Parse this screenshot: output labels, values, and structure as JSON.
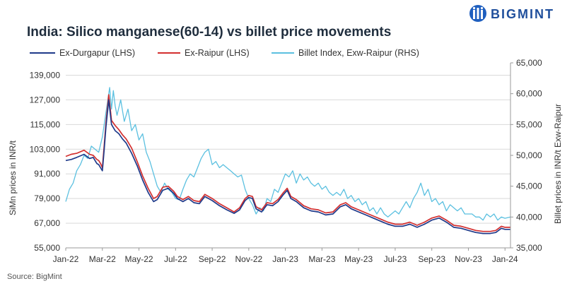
{
  "brand": {
    "name": "BIGMINT",
    "logo_color": "#1f5fbf"
  },
  "chart_data": {
    "type": "line",
    "title": "India: Silico manganese(60-14) vs billet price movements",
    "source": "Source: BigMint",
    "y_left": {
      "label": "SiMn prices in INR/t",
      "min": 55000,
      "max": 145000,
      "ticks": [
        "55,000",
        "67,000",
        "79,000",
        "91,000",
        "103,000",
        "115,000",
        "127,000",
        "139,000"
      ],
      "tick_values": [
        55000,
        67000,
        79000,
        91000,
        103000,
        115000,
        127000,
        139000
      ]
    },
    "y_right": {
      "label": "Billet prices in INR/t Exw-Raipur",
      "min": 35000,
      "max": 65000,
      "ticks": [
        "35,000",
        "40,000",
        "45,000",
        "50,000",
        "55,000",
        "60,000",
        "65,000"
      ],
      "tick_values": [
        35000,
        40000,
        45000,
        50000,
        55000,
        60000,
        65000
      ]
    },
    "x_ticks": [
      "Jan-22",
      "Mar-22",
      "May-22",
      "Jul-22",
      "Sep-22",
      "Nov-22",
      "Jan-23",
      "Mar-23",
      "May-23",
      "Jul-23",
      "Sep-23",
      "Nov-23",
      "Jan-24"
    ],
    "x_tick_months": [
      0,
      2,
      4,
      6,
      8,
      10,
      12,
      14,
      16,
      18,
      20,
      22,
      24
    ],
    "x_range": [
      0,
      24.3
    ],
    "grid": "horizontal",
    "legend_position": "top",
    "series": [
      {
        "name": "Ex-Durgapur (LHS)",
        "axis": "left",
        "color": "#1f3a8a",
        "x": [
          0,
          0.3,
          0.6,
          1.0,
          1.3,
          1.5,
          1.7,
          1.8,
          1.9,
          2.0,
          2.1,
          2.2,
          2.35,
          2.5,
          2.7,
          2.9,
          3.1,
          3.3,
          3.6,
          3.9,
          4.2,
          4.5,
          4.8,
          5.0,
          5.3,
          5.6,
          5.9,
          6.1,
          6.4,
          6.7,
          7.0,
          7.3,
          7.6,
          8.0,
          8.4,
          8.8,
          9.2,
          9.5,
          9.8,
          10.0,
          10.2,
          10.4,
          10.7,
          11.0,
          11.3,
          11.6,
          11.9,
          12.1,
          12.3,
          12.6,
          13.0,
          13.4,
          13.8,
          14.2,
          14.6,
          15.0,
          15.3,
          15.6,
          16.0,
          16.4,
          16.8,
          17.2,
          17.6,
          18.0,
          18.4,
          18.8,
          19.2,
          19.6,
          20.0,
          20.4,
          20.8,
          21.2,
          21.6,
          22.0,
          22.4,
          22.8,
          23.2,
          23.5,
          23.8,
          24.0,
          24.3
        ],
        "y": [
          97500,
          98000,
          99000,
          100500,
          98500,
          99000,
          96000,
          95500,
          94000,
          92500,
          103000,
          114000,
          127000,
          115000,
          112000,
          110500,
          108000,
          106000,
          101000,
          95000,
          88000,
          82000,
          77500,
          78500,
          83000,
          84000,
          81500,
          79000,
          77500,
          79000,
          77000,
          76500,
          80000,
          78000,
          75500,
          73500,
          71800,
          73500,
          78000,
          79500,
          79000,
          74000,
          72500,
          76000,
          75500,
          77500,
          81000,
          83000,
          79000,
          77500,
          74500,
          73000,
          72500,
          71000,
          71500,
          75000,
          76000,
          74000,
          72500,
          71000,
          69500,
          68000,
          66500,
          65500,
          65500,
          66500,
          65000,
          66500,
          68500,
          69500,
          67500,
          65000,
          64500,
          63500,
          62500,
          62000,
          62000,
          62500,
          64500,
          64000,
          64000
        ]
      },
      {
        "name": "Ex-Raipur (LHS)",
        "axis": "left",
        "color": "#d32f2f",
        "x": [
          0,
          0.3,
          0.6,
          1.0,
          1.3,
          1.5,
          1.7,
          1.8,
          1.9,
          2.0,
          2.1,
          2.2,
          2.35,
          2.5,
          2.7,
          2.9,
          3.1,
          3.3,
          3.6,
          3.9,
          4.2,
          4.5,
          4.8,
          5.0,
          5.3,
          5.6,
          5.9,
          6.1,
          6.4,
          6.7,
          7.0,
          7.3,
          7.6,
          8.0,
          8.4,
          8.8,
          9.2,
          9.5,
          9.8,
          10.0,
          10.2,
          10.4,
          10.7,
          11.0,
          11.3,
          11.6,
          11.9,
          12.1,
          12.3,
          12.6,
          13.0,
          13.4,
          13.8,
          14.2,
          14.6,
          15.0,
          15.3,
          15.6,
          16.0,
          16.4,
          16.8,
          17.2,
          17.6,
          18.0,
          18.4,
          18.8,
          19.2,
          19.6,
          20.0,
          20.4,
          20.8,
          21.2,
          21.6,
          22.0,
          22.4,
          22.8,
          23.2,
          23.5,
          23.8,
          24.0,
          24.3
        ],
        "y": [
          99500,
          100500,
          101000,
          102500,
          100500,
          100000,
          98000,
          97500,
          96000,
          94000,
          105000,
          116000,
          129500,
          117000,
          114500,
          112500,
          110000,
          108000,
          103500,
          97000,
          90000,
          84000,
          79000,
          80000,
          84500,
          85000,
          82500,
          80000,
          78500,
          80000,
          78000,
          77500,
          81000,
          79000,
          76500,
          74500,
          72500,
          74500,
          79000,
          80500,
          80000,
          75000,
          73500,
          77000,
          76500,
          78500,
          82000,
          84000,
          80000,
          78500,
          75500,
          74000,
          73500,
          72000,
          72500,
          76000,
          77000,
          75000,
          73500,
          72000,
          70500,
          69000,
          67500,
          66500,
          66500,
          67500,
          66000,
          67500,
          69500,
          70500,
          68500,
          66000,
          65500,
          64500,
          63500,
          63000,
          63000,
          63500,
          65500,
          65000,
          65000
        ]
      },
      {
        "name": "Billet Index, Exw-Raipur (RHS)",
        "axis": "right",
        "color": "#5bc0e0",
        "x": [
          0,
          0.2,
          0.4,
          0.6,
          0.8,
          1.0,
          1.2,
          1.4,
          1.6,
          1.8,
          2.0,
          2.2,
          2.3,
          2.4,
          2.5,
          2.6,
          2.7,
          2.8,
          3.0,
          3.2,
          3.4,
          3.6,
          3.8,
          4.0,
          4.2,
          4.4,
          4.6,
          4.8,
          5.0,
          5.2,
          5.4,
          5.6,
          5.8,
          6.0,
          6.2,
          6.4,
          6.6,
          6.8,
          7.0,
          7.2,
          7.4,
          7.6,
          7.8,
          8.0,
          8.2,
          8.4,
          8.6,
          8.8,
          9.0,
          9.2,
          9.4,
          9.6,
          9.8,
          10.0,
          10.2,
          10.4,
          10.6,
          10.8,
          11.0,
          11.2,
          11.4,
          11.6,
          11.8,
          12.0,
          12.2,
          12.4,
          12.6,
          12.8,
          13.0,
          13.2,
          13.4,
          13.6,
          13.8,
          14.0,
          14.2,
          14.4,
          14.6,
          14.8,
          15.0,
          15.2,
          15.4,
          15.6,
          15.8,
          16.0,
          16.2,
          16.4,
          16.6,
          16.8,
          17.0,
          17.2,
          17.4,
          17.6,
          17.8,
          18.0,
          18.2,
          18.4,
          18.6,
          18.8,
          19.0,
          19.2,
          19.4,
          19.6,
          19.8,
          20.0,
          20.2,
          20.4,
          20.6,
          20.8,
          21.0,
          21.2,
          21.4,
          21.6,
          21.8,
          22.0,
          22.2,
          22.4,
          22.6,
          22.8,
          23.0,
          23.2,
          23.4,
          23.6,
          23.8,
          24.0,
          24.3
        ],
        "y": [
          42500,
          44500,
          45500,
          47500,
          48500,
          50000,
          49500,
          51500,
          51000,
          50500,
          53000,
          57000,
          59000,
          61000,
          57500,
          60500,
          58000,
          56500,
          59000,
          55500,
          57500,
          54000,
          55000,
          52500,
          53500,
          50500,
          49000,
          47000,
          45000,
          44000,
          45500,
          44500,
          44000,
          43000,
          42800,
          44500,
          46000,
          47000,
          46500,
          48000,
          49500,
          50500,
          51000,
          48500,
          49000,
          48000,
          48500,
          48000,
          47500,
          47000,
          46500,
          46800,
          44500,
          43000,
          42000,
          40500,
          41500,
          41000,
          43000,
          42500,
          44500,
          44000,
          45500,
          47000,
          46500,
          47500,
          45500,
          47000,
          46000,
          46500,
          45500,
          45000,
          45500,
          44500,
          45000,
          44000,
          43500,
          44000,
          43500,
          44500,
          43000,
          43500,
          42500,
          43000,
          42000,
          42500,
          41000,
          41500,
          40500,
          41500,
          40500,
          40000,
          40500,
          41000,
          40500,
          41500,
          42500,
          41500,
          43000,
          44000,
          45500,
          43500,
          44500,
          42500,
          43000,
          42000,
          42500,
          41000,
          42000,
          41500,
          41000,
          41500,
          40500,
          40500,
          40500,
          40000,
          40000,
          39500,
          40500,
          40000,
          40500,
          39500,
          40000,
          39800,
          40000
        ]
      }
    ]
  }
}
